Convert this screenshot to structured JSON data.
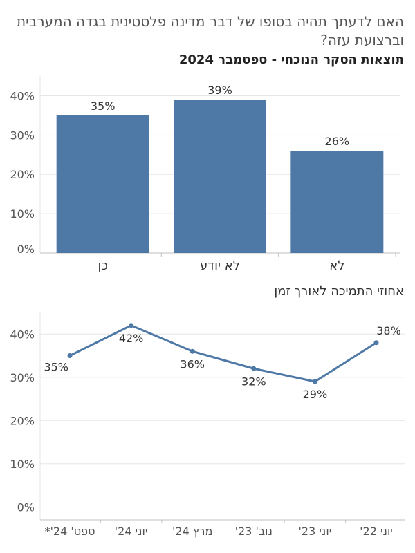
{
  "header": {
    "title": "האם לדעתך תהיה בסופו של דבר מדינה פלסטינית בגדה המערבית וברצועת עזה?",
    "subtitle": "תוצאות הסקר הנוכחי - ספטמבר 2024"
  },
  "line_section": {
    "title": "אחוזי התמיכה לאורך זמן"
  },
  "colors": {
    "bar": "#4e78a6",
    "line": "#4e78a6",
    "grid": "#e6e6e6",
    "axis": "#bfbfbf"
  },
  "chart_data": [
    {
      "type": "bar",
      "categories": [
        "כן",
        "לא יודע",
        "לא"
      ],
      "values": [
        35,
        39,
        26
      ],
      "value_labels": [
        "35%",
        "39%",
        "26%"
      ],
      "ylim": [
        0,
        45
      ],
      "yticks": [
        0,
        10,
        20,
        30,
        40
      ],
      "ytick_labels": [
        "0%",
        "10%",
        "20%",
        "30%",
        "40%"
      ],
      "grid": true
    },
    {
      "type": "line",
      "categories": [
        "ספט' 24'*",
        "יוני 24'",
        "מרץ 24'",
        "נוב' 23'",
        "יוני 23'",
        "יוני 22'"
      ],
      "values": [
        35,
        42,
        36,
        32,
        29,
        38
      ],
      "value_labels": [
        "35%",
        "42%",
        "36%",
        "32%",
        "29%",
        "38%"
      ],
      "ylim": [
        -3,
        45
      ],
      "yticks": [
        0,
        10,
        20,
        30,
        40
      ],
      "ytick_labels": [
        "0%",
        "10%",
        "20%",
        "30%",
        "40%"
      ],
      "grid": true
    }
  ]
}
